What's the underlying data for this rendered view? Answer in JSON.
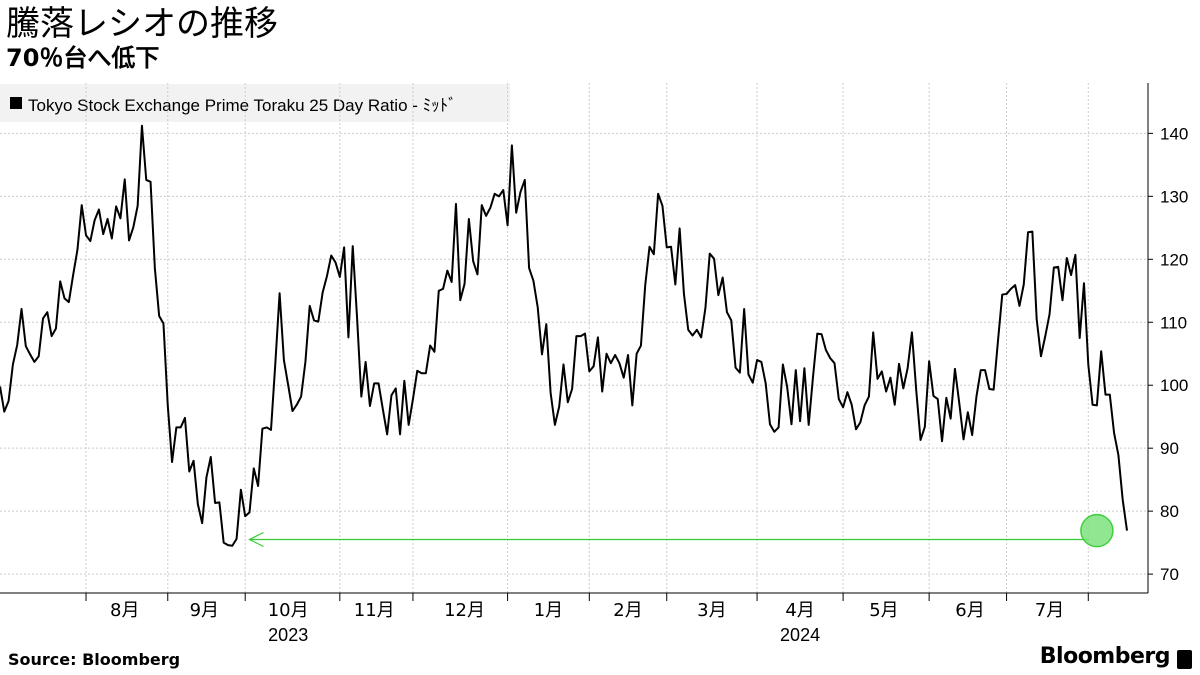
{
  "header": {
    "title": "騰落レシオの推移",
    "subtitle": "70％台へ低下"
  },
  "footer": {
    "source": "Source:  Bloomberg",
    "brand": "Bloomberg"
  },
  "colors": {
    "line": "#000000",
    "grid": "#cccccc",
    "highlight_fill": "#7ee27e",
    "highlight_stroke": "#3fcf3f",
    "arrow": "#33cc33"
  },
  "chart_data": {
    "type": "line",
    "series": [
      {
        "name": "Tokyo Stock Exchange Prime Toraku 25 Day Ratio - ﾐｯﾄﾞ",
        "values": [
          99.8,
          95.8,
          97.5,
          103.3,
          106.4,
          112.1,
          106.2,
          104.9,
          103.7,
          104.6,
          110.6,
          111.6,
          107.8,
          109.0,
          116.5,
          113.8,
          113.2,
          117.5,
          121.5,
          128.6,
          123.8,
          122.9,
          126.2,
          127.9,
          124.0,
          126.4,
          123.3,
          128.4,
          126.5,
          132.7,
          123.0,
          125.1,
          128.5,
          141.2,
          132.6,
          132.3,
          118.6,
          111.0,
          109.8,
          96.8,
          87.8,
          93.3,
          93.3,
          94.8,
          86.3,
          88.0,
          81.1,
          78.1,
          85.4,
          88.6,
          81.3,
          81.4,
          75.0,
          74.6,
          74.5,
          75.6,
          83.4,
          79.2,
          79.8,
          86.8,
          84.0,
          93.1,
          93.3,
          92.9,
          103.4,
          114.6,
          104.0,
          100.0,
          95.9,
          96.9,
          98.2,
          103.7,
          112.6,
          110.3,
          110.1,
          114.7,
          117.3,
          120.6,
          119.5,
          117.2,
          121.9,
          107.6,
          122.1,
          110.8,
          98.2,
          103.7,
          96.7,
          100.3,
          100.3,
          96.2,
          92.2,
          98.4,
          99.5,
          92.2,
          100.7,
          93.7,
          97.8,
          102.3,
          101.9,
          101.9,
          106.3,
          105.3,
          115.0,
          115.3,
          118.2,
          116.4,
          128.8,
          113.5,
          116.1,
          126.4,
          119.7,
          117.6,
          128.6,
          126.9,
          128.2,
          130.4,
          130.0,
          131.0,
          125.4,
          138.1,
          127.4,
          130.7,
          132.6,
          118.6,
          116.6,
          112.4,
          104.9,
          109.7,
          98.8,
          93.7,
          96.6,
          103.3,
          97.3,
          99.4,
          107.8,
          107.8,
          108.2,
          102.2,
          103.0,
          107.6,
          99.0,
          105.0,
          103.5,
          104.8,
          103.5,
          101.2,
          104.8,
          96.8,
          105.0,
          106.3,
          115.9,
          122.0,
          120.8,
          130.4,
          128.5,
          121.9,
          122.0,
          116.0,
          124.9,
          114.5,
          108.8,
          107.9,
          108.8,
          107.6,
          112.3,
          120.9,
          120.1,
          114.3,
          117.1,
          111.6,
          110.3,
          102.8,
          102.0,
          112.1,
          101.7,
          100.4,
          104.0,
          103.7,
          100.3,
          93.8,
          92.6,
          93.3,
          103.3,
          99.7,
          93.8,
          102.4,
          94.3,
          102.7,
          93.7,
          101.3,
          108.2,
          108.1,
          105.6,
          104.3,
          103.5,
          97.8,
          96.5,
          98.9,
          96.9,
          93.0,
          94.1,
          96.8,
          98.2,
          108.4,
          101.0,
          102.2,
          99.0,
          101.2,
          96.9,
          103.4,
          99.5,
          102.7,
          108.4,
          99.2,
          91.3,
          93.4,
          103.8,
          98.3,
          97.8,
          91.1,
          98.0,
          94.7,
          102.6,
          97.2,
          91.4,
          95.7,
          92.1,
          98.2,
          102.4,
          102.4,
          99.4,
          99.3,
          107.0,
          114.4,
          114.5,
          115.3,
          115.9,
          112.6,
          116.0,
          124.3,
          124.4,
          110.5,
          104.6,
          107.8,
          111.3,
          118.7,
          118.8,
          113.5,
          120.2,
          117.5,
          120.7,
          107.5,
          116.2,
          103.3,
          96.9,
          96.8,
          105.4,
          98.5,
          98.5,
          92.4,
          88.9,
          81.8,
          76.9
        ]
      }
    ],
    "ylim": [
      67,
      148
    ],
    "yticks": [
      70,
      80,
      90,
      100,
      110,
      120,
      130,
      140
    ],
    "x_month_labels": [
      "8月",
      "9月",
      "10月",
      "11月",
      "12月",
      "1月",
      "2月",
      "3月",
      "4月",
      "5月",
      "6月",
      "7月"
    ],
    "x_month_label_positions": [
      29,
      47.5,
      67,
      87,
      108,
      127.5,
      146,
      165.5,
      186,
      205.5,
      225.5,
      244
    ],
    "x_month_boundaries": [
      20,
      39,
      57,
      79,
      96,
      118,
      137,
      155,
      176,
      196,
      216,
      234,
      253
    ],
    "x_year_labels": [
      {
        "label": "2023",
        "position": 67
      },
      {
        "label": "2024",
        "position": 186
      }
    ],
    "grid": true,
    "highlight": {
      "x": 255,
      "y": 76.9
    },
    "arrow": {
      "x_from": 253,
      "x_to": 58,
      "y_from": 75.5,
      "y_to": 75.5
    }
  }
}
